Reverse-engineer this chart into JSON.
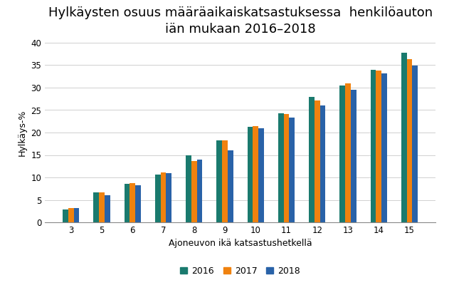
{
  "title": "Hylkäysten osuus määräaikaiskatsastuksessa  henkilöauton\niän mukaan 2016–2018",
  "xlabel": "Ajoneuvon ikä katsastushetkellä",
  "ylabel": "Hylkäys-%",
  "categories": [
    3,
    5,
    6,
    7,
    8,
    9,
    10,
    11,
    12,
    13,
    14,
    15
  ],
  "series": {
    "2016": [
      2.8,
      6.6,
      8.5,
      10.6,
      15.0,
      18.2,
      21.3,
      24.3,
      28.0,
      30.5,
      33.9,
      37.8
    ],
    "2017": [
      3.2,
      6.7,
      8.8,
      11.1,
      13.6,
      18.2,
      21.4,
      24.2,
      27.2,
      31.0,
      33.8,
      36.3
    ],
    "2018": [
      3.2,
      6.1,
      8.3,
      11.0,
      13.9,
      16.1,
      20.9,
      23.4,
      26.1,
      29.5,
      33.1,
      34.9
    ]
  },
  "colors": {
    "2016": "#1a7a6e",
    "2017": "#f0820f",
    "2018": "#2962a8"
  },
  "ylim": [
    0,
    40
  ],
  "yticks": [
    0,
    5,
    10,
    15,
    20,
    25,
    30,
    35,
    40
  ],
  "bar_width": 0.18,
  "background_color": "#ffffff",
  "grid_color": "#d0d0d0",
  "title_fontsize": 13,
  "label_fontsize": 9,
  "tick_fontsize": 8.5,
  "legend_fontsize": 9
}
